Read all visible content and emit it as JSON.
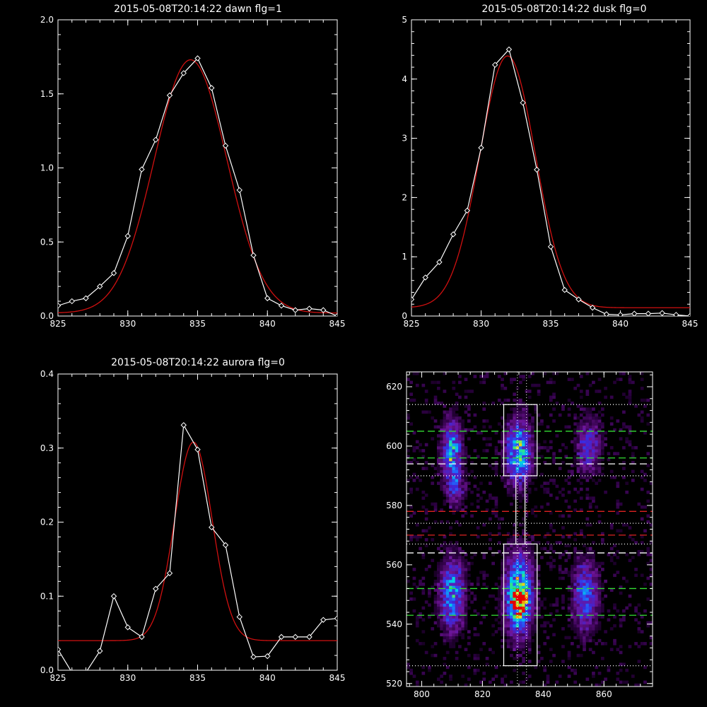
{
  "colors": {
    "background": "#000000",
    "axes": "#ffffff",
    "data": "#ffffff",
    "fit": "#d01010",
    "green": "#33dd33",
    "red": "#dd2222",
    "white": "#ffffff"
  },
  "chart_data": [
    {
      "type": "line",
      "title": "2015-05-08T20:14:22 dawn flg=1",
      "xlim": [
        825,
        845
      ],
      "ylim": [
        0,
        2.0
      ],
      "xticks": [
        "825",
        "830",
        "835",
        "840",
        "845"
      ],
      "yticks": [
        "0.0",
        "0.5",
        "1.0",
        "1.5",
        "2.0"
      ],
      "series": [
        {
          "role": "data",
          "marker": "diamond",
          "x": [
            825,
            826,
            827,
            828,
            829,
            830,
            831,
            832,
            833,
            834,
            835,
            836,
            837,
            838,
            839,
            840,
            841,
            842,
            843,
            844,
            845
          ],
          "y": [
            0.07,
            0.1,
            0.12,
            0.2,
            0.29,
            0.54,
            0.99,
            1.19,
            1.49,
            1.64,
            1.74,
            1.54,
            1.15,
            0.85,
            0.41,
            0.12,
            0.07,
            0.04,
            0.05,
            0.04,
            0.0
          ]
        },
        {
          "role": "fit",
          "model": "gaussian",
          "center": 834.5,
          "sigma": 2.6,
          "amplitude": 1.71,
          "baseline": 0.02
        }
      ]
    },
    {
      "type": "line",
      "title": "2015-05-08T20:14:22 dusk flg=0",
      "xlim": [
        825,
        845
      ],
      "ylim": [
        0,
        5
      ],
      "xticks": [
        "825",
        "830",
        "835",
        "840",
        "845"
      ],
      "yticks": [
        "0",
        "1",
        "2",
        "3",
        "4",
        "5"
      ],
      "series": [
        {
          "role": "data",
          "marker": "diamond",
          "x": [
            825,
            826,
            827,
            828,
            829,
            830,
            831,
            832,
            833,
            834,
            835,
            836,
            837,
            838,
            839,
            840,
            841,
            842,
            843,
            844,
            845
          ],
          "y": [
            0.28,
            0.65,
            0.91,
            1.38,
            1.78,
            2.84,
            4.24,
            4.5,
            3.6,
            2.47,
            1.17,
            0.44,
            0.28,
            0.14,
            0.03,
            0.02,
            0.04,
            0.04,
            0.05,
            0.02,
            0.0
          ]
        },
        {
          "role": "fit",
          "model": "gaussian",
          "center": 831.9,
          "sigma": 2.0,
          "amplitude": 4.25,
          "baseline": 0.14
        }
      ]
    },
    {
      "type": "line",
      "title": "2015-05-08T20:14:22 aurora flg=0",
      "xlim": [
        825,
        845
      ],
      "ylim": [
        0,
        0.4
      ],
      "xticks": [
        "825",
        "830",
        "835",
        "840",
        "845"
      ],
      "yticks": [
        "0.0",
        "0.1",
        "0.2",
        "0.3",
        "0.4"
      ],
      "series": [
        {
          "role": "data",
          "marker": "diamond",
          "x": [
            825,
            826,
            827,
            828,
            829,
            830,
            831,
            832,
            833,
            834,
            835,
            836,
            837,
            838,
            839,
            840,
            841,
            842,
            843,
            844,
            845
          ],
          "y": [
            0.028,
            -0.003,
            -0.003,
            0.026,
            0.1,
            0.058,
            0.045,
            0.11,
            0.131,
            0.331,
            0.298,
            0.193,
            0.169,
            0.072,
            0.018,
            0.019,
            0.045,
            0.045,
            0.045,
            0.068,
            0.07
          ]
        },
        {
          "role": "fit",
          "model": "gaussian",
          "center": 834.7,
          "sigma": 1.35,
          "amplitude": 0.268,
          "baseline": 0.04
        }
      ]
    },
    {
      "type": "heatmap",
      "xlim": [
        795,
        876
      ],
      "ylim": [
        519,
        625
      ],
      "xticks": [
        "800",
        "820",
        "840",
        "860"
      ],
      "yticks": [
        "520",
        "540",
        "560",
        "580",
        "600",
        "620"
      ],
      "blobs": [
        {
          "x": 810,
          "y": 598,
          "sx": 2.2,
          "sy": 7,
          "a": 0.55
        },
        {
          "x": 811,
          "y": 585,
          "sx": 2.0,
          "sy": 4,
          "a": 0.25
        },
        {
          "x": 810,
          "y": 550,
          "sx": 2.6,
          "sy": 8,
          "a": 0.55
        },
        {
          "x": 832,
          "y": 598,
          "sx": 2.8,
          "sy": 7,
          "a": 0.65
        },
        {
          "x": 832,
          "y": 550,
          "sx": 3.0,
          "sy": 9,
          "a": 0.75
        },
        {
          "x": 832,
          "y": 548,
          "sx": 1.5,
          "sy": 3,
          "a": 0.75
        },
        {
          "x": 855,
          "y": 600,
          "sx": 2.6,
          "sy": 6,
          "a": 0.35
        },
        {
          "x": 854,
          "y": 550,
          "sx": 2.8,
          "sy": 8,
          "a": 0.42
        }
      ],
      "hlines": [
        {
          "y": 605,
          "color": "green",
          "style": "dashed"
        },
        {
          "y": 596,
          "color": "green",
          "style": "dashed"
        },
        {
          "y": 594,
          "color": "white",
          "style": "dashed"
        },
        {
          "y": 578,
          "color": "red",
          "style": "dashed"
        },
        {
          "y": 570,
          "color": "red",
          "style": "dashed"
        },
        {
          "y": 564,
          "color": "white",
          "style": "dashed"
        },
        {
          "y": 552,
          "color": "green",
          "style": "dashed"
        },
        {
          "y": 543,
          "color": "green",
          "style": "dashed"
        },
        {
          "y": 614,
          "color": "white",
          "style": "dotted"
        },
        {
          "y": 590,
          "color": "white",
          "style": "dotted"
        },
        {
          "y": 574,
          "color": "white",
          "style": "dotted"
        },
        {
          "y": 567,
          "color": "white",
          "style": "dotted"
        },
        {
          "y": 526,
          "color": "white",
          "style": "dotted"
        }
      ],
      "vlines": [
        {
          "x": 831.5,
          "color": "white",
          "style": "dotted"
        },
        {
          "x": 834.5,
          "color": "white",
          "style": "dotted"
        }
      ],
      "boxes": [
        {
          "x0": 827,
          "x1": 838,
          "y0": 590,
          "y1": 614
        },
        {
          "x0": 827,
          "x1": 838,
          "y0": 526,
          "y1": 567
        },
        {
          "x0": 831,
          "x1": 834,
          "y0": 567,
          "y1": 590
        }
      ]
    }
  ]
}
